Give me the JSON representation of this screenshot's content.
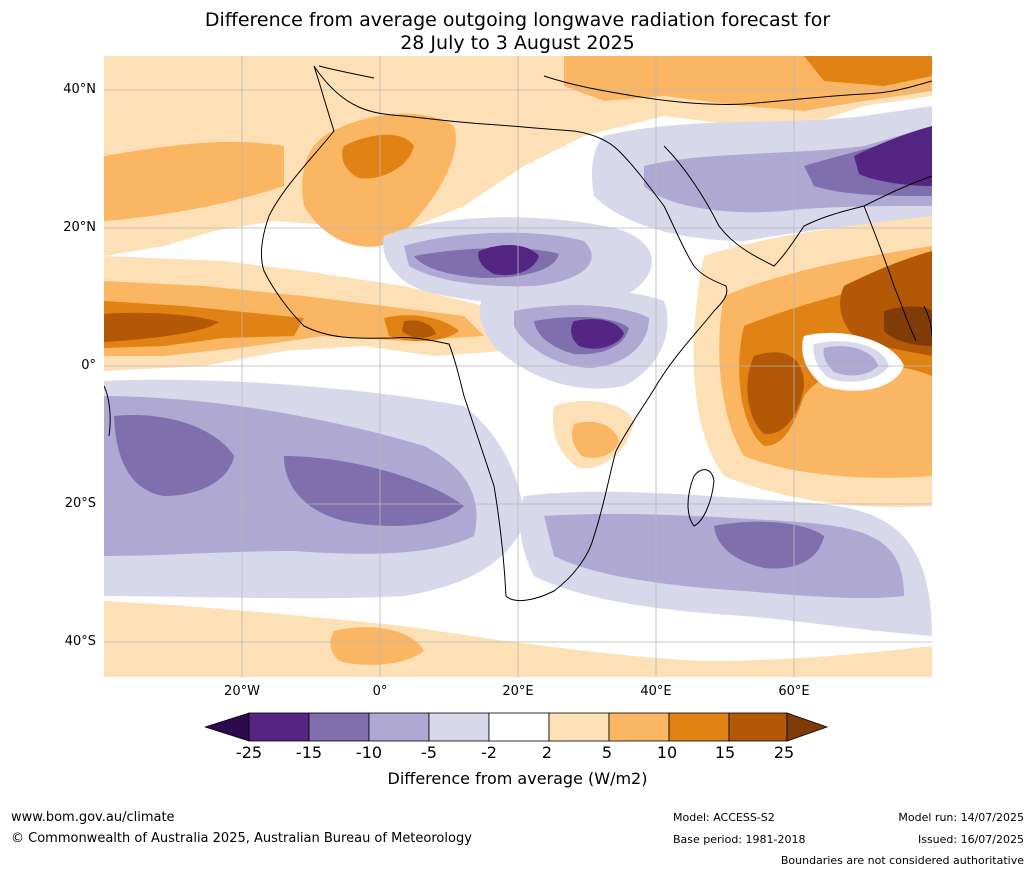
{
  "title_line1": "Difference from average outgoing longwave radiation forecast for",
  "title_line2": "28 July to 3 August 2025",
  "map": {
    "extent": {
      "lon_min": -40,
      "lon_max": 80,
      "lat_min": -45,
      "lat_max": 45
    },
    "lat_ticks": [
      "40°N",
      "20°N",
      "0°",
      "20°S",
      "40°S"
    ],
    "lon_ticks": [
      "20°W",
      "0°",
      "20°E",
      "40°E",
      "60°E"
    ],
    "grid": true
  },
  "colorbar": {
    "ticks": [
      "-25",
      "-15",
      "-10",
      "-5",
      "-2",
      "2",
      "5",
      "10",
      "15",
      "25"
    ],
    "colors": {
      "lt_m25": "#2d0a4e",
      "m25_m15": "#542583",
      "m15_m10": "#7f6fad",
      "m10_m5": "#afa8d3",
      "m5_m2": "#d8d8eb",
      "m2_2": "#ffffff",
      "p2_p5": "#fee0b6",
      "p5_p10": "#fbb664",
      "p10_p15": "#e08214",
      "p15_p25": "#b35806",
      "gt_p25": "#7f3b08"
    },
    "label": "Difference from average (W/m2)"
  },
  "footer": {
    "url": "www.bom.gov.au/climate",
    "copyright": "© Commonwealth of Australia 2025, Australian Bureau of Meteorology",
    "model": "Model: ACCESS-S2",
    "base_period": "Base period: 1981-2018",
    "model_run": "Model run: 14/07/2025",
    "issued": "Issued: 16/07/2025",
    "disclaimer": "Boundaries are not considered authoritative"
  }
}
